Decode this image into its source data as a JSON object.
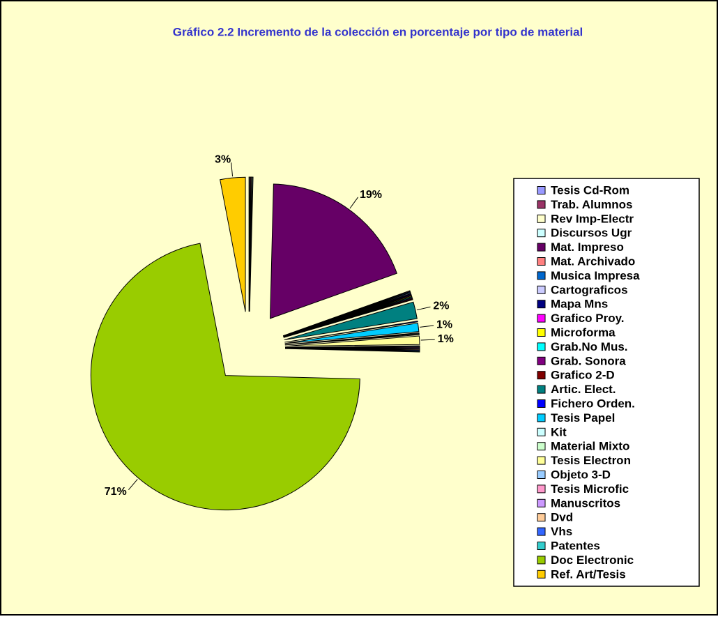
{
  "chart_data": {
    "type": "pie",
    "title": "Gráfico 2.2 Incremento de la colección en porcentaje por tipo de material",
    "categories": [
      "Tesis Cd-Rom",
      "Trab. Alumnos",
      "Rev Imp-Electr",
      "Discursos Ugr",
      "Mat. Impreso",
      "Mat. Archivado",
      "Musica Impresa",
      "Cartograficos",
      "Mapa Mns",
      "Grafico Proy.",
      "Microforma",
      "Grab.No Mus.",
      "Grab. Sonora",
      "Grafico 2-D",
      "Artic. Elect.",
      "Fichero Orden.",
      "Tesis Papel",
      "Kit",
      "Material Mixto",
      "Tesis Electron",
      "Objeto 3-D",
      "Tesis Microfic",
      "Manuscritos",
      "Dvd",
      "Vhs",
      "Patentes",
      "Doc Electronic",
      "Ref. Art/Tesis"
    ],
    "values": [
      0.1,
      0.1,
      0.1,
      0.1,
      19,
      0.1,
      0.1,
      0.1,
      0.1,
      0.1,
      0.1,
      0.1,
      0.1,
      0.1,
      2,
      0.1,
      1,
      0.1,
      0.1,
      1,
      0.1,
      0.1,
      0.1,
      0.1,
      0.1,
      0.1,
      71,
      3
    ],
    "value_labels": [
      null,
      null,
      null,
      null,
      "19%",
      null,
      null,
      null,
      null,
      null,
      null,
      null,
      null,
      null,
      "2%",
      null,
      "1%",
      null,
      null,
      "1%",
      null,
      null,
      null,
      null,
      null,
      null,
      "71%",
      "3%"
    ],
    "colors": [
      "#9999ff",
      "#993366",
      "#ffffcc",
      "#ccffff",
      "#660066",
      "#ff8080",
      "#0066cc",
      "#ccccff",
      "#000080",
      "#ff00ff",
      "#ffff00",
      "#00ffff",
      "#800080",
      "#800000",
      "#008080",
      "#0000ff",
      "#00ccff",
      "#ccffff",
      "#ccffcc",
      "#ffff99",
      "#99ccff",
      "#ff99cc",
      "#cc99ff",
      "#ffcc99",
      "#3366ff",
      "#33cccc",
      "#99cc00",
      "#ffcc00"
    ],
    "legend": "right"
  }
}
